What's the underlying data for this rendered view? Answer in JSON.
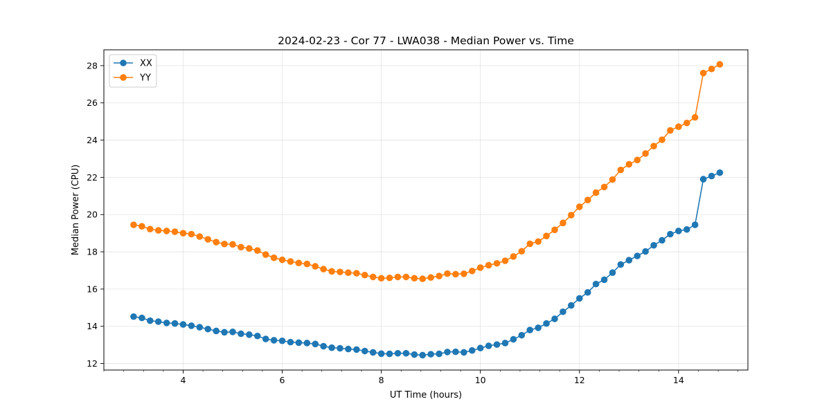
{
  "chart_data": {
    "type": "line",
    "title": "2024-02-23 - Cor 77 - LWA038 - Median Power vs. Time",
    "xlabel": "UT Time (hours)",
    "ylabel": "Median Power (CPU)",
    "xlim": [
      2.4,
      15.4
    ],
    "ylim": [
      11.65,
      28.85
    ],
    "xticks": [
      4,
      6,
      8,
      10,
      12,
      14
    ],
    "yticks": [
      12,
      14,
      16,
      18,
      20,
      22,
      24,
      26,
      28
    ],
    "grid": true,
    "legend_position": "top-left",
    "x": [
      3.0,
      3.167,
      3.333,
      3.5,
      3.667,
      3.833,
      4.0,
      4.167,
      4.333,
      4.5,
      4.667,
      4.833,
      5.0,
      5.167,
      5.333,
      5.5,
      5.667,
      5.833,
      6.0,
      6.167,
      6.333,
      6.5,
      6.667,
      6.833,
      7.0,
      7.167,
      7.333,
      7.5,
      7.667,
      7.833,
      8.0,
      8.167,
      8.333,
      8.5,
      8.667,
      8.833,
      9.0,
      9.167,
      9.333,
      9.5,
      9.667,
      9.833,
      10.0,
      10.167,
      10.333,
      10.5,
      10.667,
      10.833,
      11.0,
      11.167,
      11.333,
      11.5,
      11.667,
      11.833,
      12.0,
      12.167,
      12.333,
      12.5,
      12.667,
      12.833,
      13.0,
      13.167,
      13.333,
      13.5,
      13.667,
      13.833,
      14.0,
      14.167,
      14.333,
      14.5,
      14.667,
      14.833
    ],
    "series": [
      {
        "name": "XX",
        "color": "#1f77b4",
        "values": [
          14.52,
          14.45,
          14.3,
          14.25,
          14.18,
          14.15,
          14.1,
          14.03,
          13.95,
          13.85,
          13.75,
          13.68,
          13.7,
          13.6,
          13.55,
          13.48,
          13.32,
          13.25,
          13.22,
          13.15,
          13.12,
          13.1,
          13.05,
          12.93,
          12.85,
          12.82,
          12.78,
          12.75,
          12.67,
          12.6,
          12.53,
          12.52,
          12.55,
          12.55,
          12.48,
          12.45,
          12.5,
          12.52,
          12.62,
          12.63,
          12.6,
          12.7,
          12.83,
          12.95,
          13.02,
          13.1,
          13.3,
          13.52,
          13.8,
          13.92,
          14.15,
          14.4,
          14.78,
          15.12,
          15.5,
          15.82,
          16.27,
          16.5,
          16.88,
          17.32,
          17.55,
          17.78,
          18.02,
          18.35,
          18.62,
          18.95,
          19.12,
          19.2,
          19.45,
          21.9,
          22.07,
          22.25
        ]
      },
      {
        "name": "YY",
        "color": "#ff7f0e",
        "values": [
          19.45,
          19.37,
          19.22,
          19.15,
          19.12,
          19.08,
          19.0,
          18.95,
          18.82,
          18.67,
          18.52,
          18.42,
          18.4,
          18.25,
          18.18,
          18.07,
          17.85,
          17.68,
          17.57,
          17.48,
          17.4,
          17.35,
          17.22,
          17.07,
          16.95,
          16.92,
          16.88,
          16.85,
          16.75,
          16.65,
          16.58,
          16.6,
          16.65,
          16.65,
          16.58,
          16.55,
          16.62,
          16.7,
          16.83,
          16.8,
          16.82,
          16.97,
          17.15,
          17.28,
          17.38,
          17.52,
          17.75,
          18.03,
          18.43,
          18.55,
          18.85,
          19.18,
          19.55,
          19.97,
          20.42,
          20.78,
          21.18,
          21.48,
          21.88,
          22.4,
          22.7,
          22.93,
          23.28,
          23.68,
          24.02,
          24.52,
          24.72,
          24.92,
          25.22,
          27.6,
          27.82,
          28.07
        ]
      }
    ]
  }
}
